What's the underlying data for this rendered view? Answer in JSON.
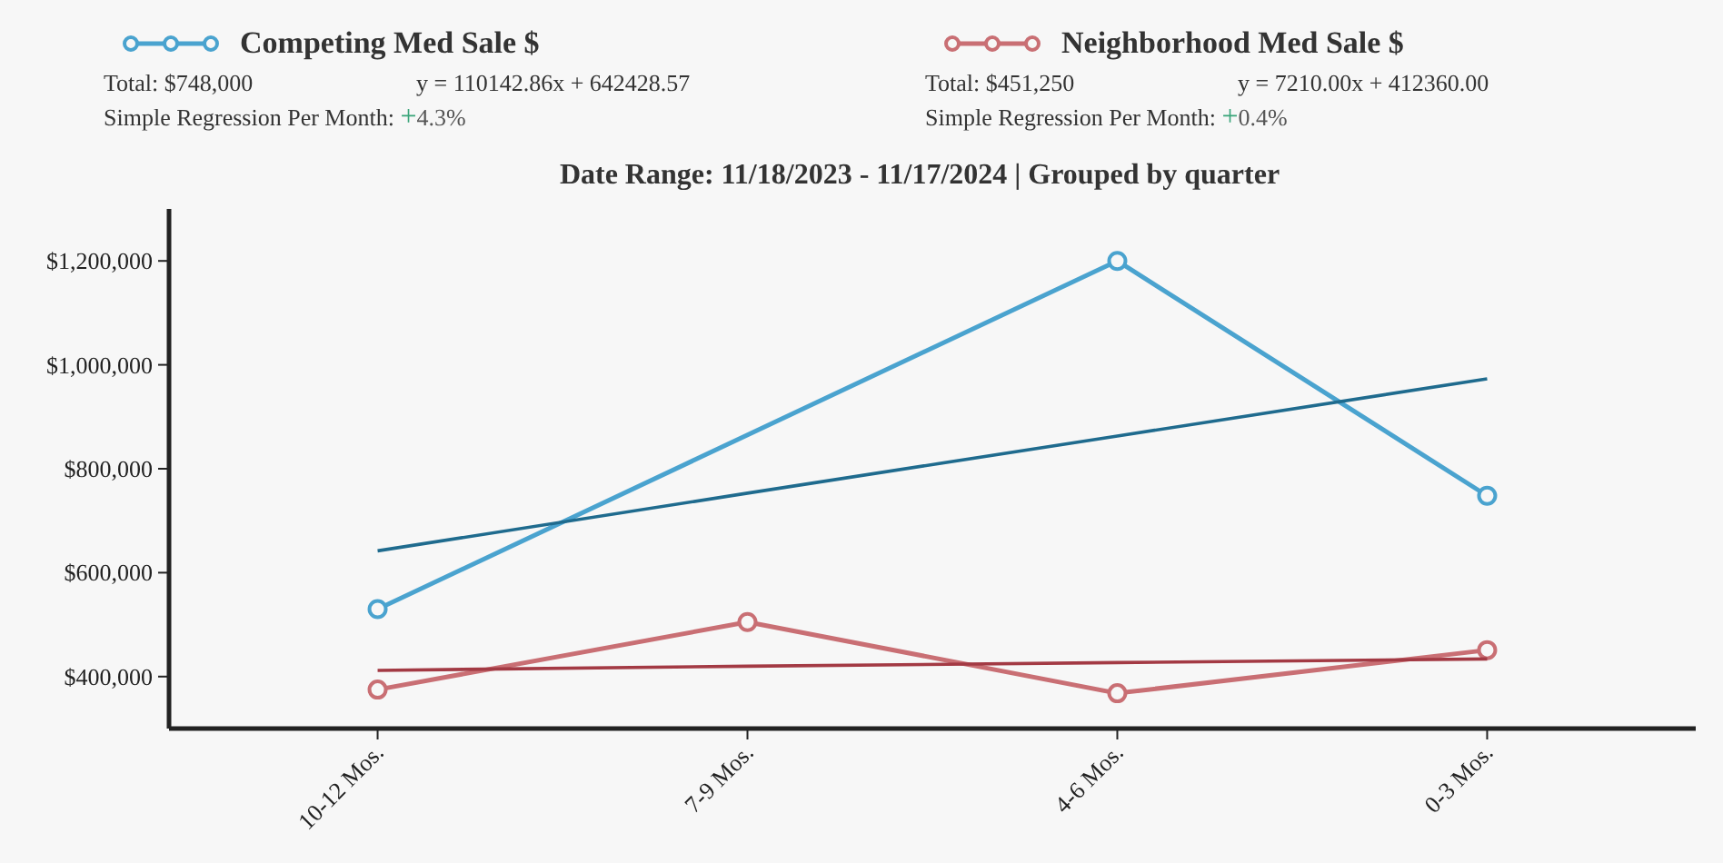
{
  "chart_data": {
    "type": "line",
    "title": "Date Range: 11/18/2023 - 11/17/2024 | Grouped by quarter",
    "categories": [
      "10-12 Mos.",
      "7-9 Mos.",
      "4-6 Mos.",
      "0-3 Mos."
    ],
    "series": [
      {
        "name": "Competing Med Sale $",
        "color": "#4aa3cf",
        "values": [
          530000,
          null,
          1200000,
          748000
        ],
        "marker": "circle"
      },
      {
        "name": "Neighborhood Med Sale $",
        "color": "#c96f74",
        "values": [
          375000,
          505000,
          368000,
          451000
        ],
        "marker": "circle"
      },
      {
        "color": "#1f6b8e",
        "values": [
          642000,
          753000,
          863000,
          973000
        ],
        "marker": "none"
      },
      {
        "color": "#a33a44",
        "values": [
          412000,
          420000,
          427000,
          434000
        ],
        "marker": "none"
      }
    ],
    "ylim": [
      300000,
      1300000
    ],
    "yticks": [
      {
        "value": 400000,
        "label": "$400,000"
      },
      {
        "value": 600000,
        "label": "$600,000"
      },
      {
        "value": 800000,
        "label": "$800,000"
      },
      {
        "value": 1000000,
        "label": "$1,000,000"
      },
      {
        "value": 1200000,
        "label": "$1,200,000"
      }
    ],
    "grid": false,
    "legend": "top",
    "line_style": "solid",
    "annotations": [
      "Total: $748,000",
      "y = 110142.86x + 642428.57",
      "Simple Regression Per Month: +4.3%",
      "Total: $451,250",
      "y = 7210.00x + 412360.00",
      "Simple Regression Per Month: +0.4%"
    ]
  }
}
